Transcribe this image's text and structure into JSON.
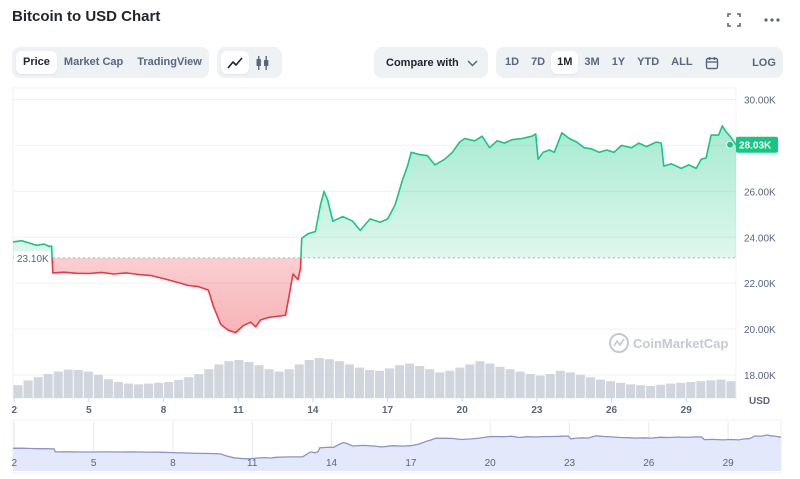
{
  "header": {
    "title": "Bitcoin to USD Chart",
    "fullscreen_icon": "fullscreen-icon",
    "more_icon": "more-horizontal-icon"
  },
  "toolbar": {
    "views": [
      "Price",
      "Market Cap",
      "TradingView"
    ],
    "active_view": "Price",
    "chart_types": [
      "line-chart-icon",
      "candlestick-icon"
    ],
    "active_chart_type": "line-chart-icon",
    "compare_label": "Compare with",
    "ranges": [
      "1D",
      "7D",
      "1M",
      "3M",
      "1Y",
      "YTD",
      "ALL"
    ],
    "active_range": "1M",
    "calendar_icon": "calendar-icon",
    "log_label": "LOG"
  },
  "colors": {
    "up": "#16c784",
    "down": "#ea3943",
    "volume": "#c5cbd4",
    "navigator_fill": "#e4e8fb",
    "navigator_line": "#8b93c9"
  },
  "chart_data": {
    "type": "area",
    "title": "Bitcoin to USD Chart",
    "currency_label": "USD",
    "y_ticks": [
      "30.00K",
      "28.00K",
      "26.00K",
      "24.00K",
      "22.00K",
      "20.00K",
      "18.00K"
    ],
    "ylim": [
      17000,
      30500
    ],
    "baseline": 23100,
    "baseline_label": "23.10K",
    "current_label": "28.03K",
    "watermark": "CoinMarketCap",
    "x_ticks": [
      "2",
      "5",
      "8",
      "11",
      "14",
      "17",
      "20",
      "23",
      "26",
      "29"
    ],
    "x_tick_days": [
      2,
      5,
      8,
      11,
      14,
      17,
      20,
      23,
      26,
      29
    ],
    "x_range": [
      1.95,
      31.0
    ],
    "price_series": [
      [
        1.95,
        23800
      ],
      [
        2.3,
        23850
      ],
      [
        2.6,
        23750
      ],
      [
        2.9,
        23650
      ],
      [
        3.2,
        23700
      ],
      [
        3.4,
        23600
      ],
      [
        3.5,
        23620
      ],
      [
        3.55,
        22450
      ],
      [
        4.0,
        22480
      ],
      [
        4.5,
        22430
      ],
      [
        5.0,
        22420
      ],
      [
        5.5,
        22470
      ],
      [
        6.0,
        22400
      ],
      [
        6.5,
        22450
      ],
      [
        7.0,
        22380
      ],
      [
        7.5,
        22330
      ],
      [
        8.0,
        22200
      ],
      [
        8.5,
        22050
      ],
      [
        9.0,
        21900
      ],
      [
        9.4,
        21850
      ],
      [
        9.8,
        21700
      ],
      [
        10.0,
        21000
      ],
      [
        10.3,
        20200
      ],
      [
        10.6,
        19950
      ],
      [
        10.9,
        19850
      ],
      [
        11.2,
        20150
      ],
      [
        11.5,
        20300
      ],
      [
        11.7,
        20100
      ],
      [
        11.9,
        20400
      ],
      [
        12.2,
        20500
      ],
      [
        12.5,
        20550
      ],
      [
        12.9,
        20600
      ],
      [
        13.05,
        21500
      ],
      [
        13.1,
        21800
      ],
      [
        13.2,
        22400
      ],
      [
        13.4,
        22150
      ],
      [
        13.5,
        22650
      ],
      [
        13.55,
        23950
      ],
      [
        13.8,
        24150
      ],
      [
        14.1,
        24250
      ],
      [
        14.3,
        25400
      ],
      [
        14.45,
        26000
      ],
      [
        14.6,
        25600
      ],
      [
        14.8,
        24700
      ],
      [
        15.2,
        24900
      ],
      [
        15.6,
        24700
      ],
      [
        15.9,
        24300
      ],
      [
        16.3,
        24800
      ],
      [
        16.7,
        24650
      ],
      [
        17.0,
        24800
      ],
      [
        17.3,
        25400
      ],
      [
        17.6,
        26500
      ],
      [
        17.8,
        27100
      ],
      [
        17.95,
        27700
      ],
      [
        18.3,
        27600
      ],
      [
        18.6,
        27550
      ],
      [
        18.9,
        27150
      ],
      [
        19.3,
        27400
      ],
      [
        19.6,
        27700
      ],
      [
        19.9,
        28150
      ],
      [
        20.1,
        28300
      ],
      [
        20.5,
        28200
      ],
      [
        20.8,
        28400
      ],
      [
        21.1,
        27900
      ],
      [
        21.4,
        28200
      ],
      [
        21.7,
        28100
      ],
      [
        22.0,
        28250
      ],
      [
        22.4,
        28300
      ],
      [
        22.8,
        28400
      ],
      [
        22.95,
        28500
      ],
      [
        23.05,
        27400
      ],
      [
        23.25,
        27700
      ],
      [
        23.5,
        27800
      ],
      [
        23.7,
        27700
      ],
      [
        24.0,
        28550
      ],
      [
        24.3,
        28300
      ],
      [
        24.6,
        28150
      ],
      [
        24.9,
        27900
      ],
      [
        25.2,
        27850
      ],
      [
        25.5,
        27700
      ],
      [
        25.8,
        27800
      ],
      [
        26.1,
        27700
      ],
      [
        26.4,
        28000
      ],
      [
        26.8,
        27900
      ],
      [
        27.1,
        28100
      ],
      [
        27.4,
        27950
      ],
      [
        27.8,
        28150
      ],
      [
        28.0,
        28100
      ],
      [
        28.1,
        27100
      ],
      [
        28.4,
        27200
      ],
      [
        28.8,
        27000
      ],
      [
        29.1,
        27150
      ],
      [
        29.4,
        27000
      ],
      [
        29.6,
        27400
      ],
      [
        29.8,
        27450
      ],
      [
        30.0,
        28450
      ],
      [
        30.3,
        28450
      ],
      [
        30.45,
        28850
      ],
      [
        30.6,
        28600
      ],
      [
        30.8,
        28350
      ],
      [
        31.0,
        28030
      ]
    ],
    "volume_relative": [
      0.32,
      0.44,
      0.52,
      0.6,
      0.66,
      0.71,
      0.7,
      0.66,
      0.58,
      0.47,
      0.4,
      0.36,
      0.34,
      0.36,
      0.38,
      0.4,
      0.45,
      0.52,
      0.6,
      0.72,
      0.84,
      0.92,
      0.95,
      0.9,
      0.82,
      0.72,
      0.66,
      0.72,
      0.84,
      0.95,
      1.0,
      0.97,
      0.92,
      0.84,
      0.76,
      0.7,
      0.68,
      0.74,
      0.82,
      0.86,
      0.8,
      0.72,
      0.64,
      0.68,
      0.76,
      0.84,
      0.92,
      0.86,
      0.78,
      0.72,
      0.66,
      0.6,
      0.56,
      0.6,
      0.68,
      0.64,
      0.58,
      0.52,
      0.46,
      0.42,
      0.38,
      0.34,
      0.32,
      0.3,
      0.33,
      0.36,
      0.38,
      0.4,
      0.42,
      0.44,
      0.46,
      0.42
    ]
  }
}
